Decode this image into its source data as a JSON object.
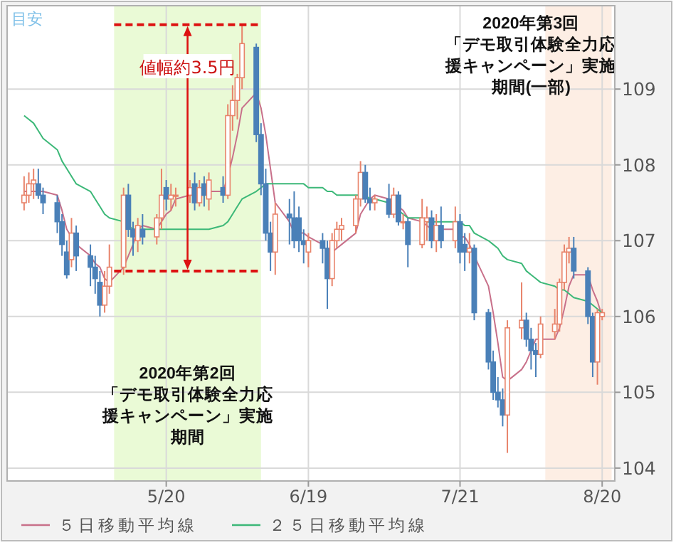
{
  "chart_data": {
    "type": "candlestick",
    "x": [
      "2020-04-20",
      "2020-04-21",
      "2020-04-22",
      "2020-04-23",
      "2020-04-24",
      "2020-04-27",
      "2020-04-28",
      "2020-04-29",
      "2020-04-30",
      "2020-05-01",
      "2020-05-04",
      "2020-05-05",
      "2020-05-06",
      "2020-05-07",
      "2020-05-08",
      "2020-05-11",
      "2020-05-12",
      "2020-05-13",
      "2020-05-14",
      "2020-05-15",
      "2020-05-18",
      "2020-05-19",
      "2020-05-20",
      "2020-05-21",
      "2020-05-22",
      "2020-05-25",
      "2020-05-26",
      "2020-05-27",
      "2020-05-28",
      "2020-05-29",
      "2020-06-01",
      "2020-06-02",
      "2020-06-03",
      "2020-06-04",
      "2020-06-05",
      "2020-06-08",
      "2020-06-09",
      "2020-06-10",
      "2020-06-11",
      "2020-06-12",
      "2020-06-15",
      "2020-06-16",
      "2020-06-17",
      "2020-06-18",
      "2020-06-19",
      "2020-06-22",
      "2020-06-23",
      "2020-06-24",
      "2020-06-25",
      "2020-06-26",
      "2020-06-29",
      "2020-06-30",
      "2020-07-01",
      "2020-07-02",
      "2020-07-03",
      "2020-07-06",
      "2020-07-07",
      "2020-07-08",
      "2020-07-09",
      "2020-07-10",
      "2020-07-13",
      "2020-07-14",
      "2020-07-15",
      "2020-07-16",
      "2020-07-17",
      "2020-07-20",
      "2020-07-21",
      "2020-07-22",
      "2020-07-23",
      "2020-07-24",
      "2020-07-27",
      "2020-07-28",
      "2020-07-29",
      "2020-07-30",
      "2020-07-31",
      "2020-08-03",
      "2020-08-04",
      "2020-08-05",
      "2020-08-06",
      "2020-08-07",
      "2020-08-10",
      "2020-08-11",
      "2020-08-12",
      "2020-08-13",
      "2020-08-14",
      "2020-08-17",
      "2020-08-18",
      "2020-08-19",
      "2020-08-20"
    ],
    "ohlc": [
      [
        107.5,
        107.85,
        107.4,
        107.6
      ],
      [
        107.6,
        107.9,
        107.5,
        107.75
      ],
      [
        107.75,
        107.95,
        107.55,
        107.8
      ],
      [
        107.75,
        107.95,
        107.55,
        107.6
      ],
      [
        107.6,
        107.7,
        107.35,
        107.5
      ],
      [
        107.5,
        107.6,
        107.1,
        107.25
      ],
      [
        107.25,
        107.35,
        106.8,
        106.95
      ],
      [
        106.85,
        107.0,
        106.5,
        106.55
      ],
      [
        106.75,
        107.3,
        106.65,
        107.1
      ],
      [
        107.1,
        107.2,
        106.6,
        106.8
      ],
      [
        106.8,
        106.95,
        106.4,
        106.65
      ],
      [
        106.65,
        106.8,
        106.3,
        106.5
      ],
      [
        106.45,
        106.6,
        106.0,
        106.15
      ],
      [
        106.15,
        106.6,
        106.05,
        106.4
      ],
      [
        106.4,
        106.95,
        106.3,
        106.65
      ],
      [
        106.65,
        107.7,
        106.55,
        107.6
      ],
      [
        107.6,
        107.75,
        107.05,
        107.15
      ],
      [
        107.15,
        107.25,
        106.8,
        107.05
      ],
      [
        107.0,
        107.3,
        106.85,
        107.2
      ],
      [
        107.15,
        107.35,
        106.95,
        107.05
      ],
      [
        107.05,
        107.35,
        106.95,
        107.3
      ],
      [
        107.3,
        107.95,
        107.15,
        107.6
      ],
      [
        107.7,
        107.8,
        107.4,
        107.55
      ],
      [
        107.55,
        107.75,
        107.4,
        107.6
      ],
      [
        107.6,
        107.7,
        107.45,
        107.6
      ],
      [
        107.6,
        107.8,
        107.5,
        107.7
      ],
      [
        107.75,
        107.9,
        107.4,
        107.5
      ],
      [
        107.5,
        107.8,
        107.45,
        107.7
      ],
      [
        107.75,
        107.85,
        107.45,
        107.6
      ],
      [
        107.55,
        107.9,
        107.4,
        107.8
      ],
      [
        107.7,
        107.85,
        107.5,
        107.6
      ],
      [
        107.6,
        108.8,
        107.55,
        108.65
      ],
      [
        108.65,
        109.05,
        108.45,
        108.85
      ],
      [
        108.85,
        109.2,
        108.6,
        109.15
      ],
      [
        109.15,
        109.85,
        109.0,
        109.6
      ],
      [
        109.55,
        109.6,
        108.3,
        108.4
      ],
      [
        108.4,
        108.55,
        107.6,
        107.75
      ],
      [
        107.75,
        107.95,
        107.0,
        107.1
      ],
      [
        107.1,
        107.25,
        106.6,
        106.85
      ],
      [
        106.85,
        107.5,
        106.55,
        107.35
      ],
      [
        107.35,
        107.55,
        106.95,
        107.3
      ],
      [
        107.3,
        107.65,
        106.9,
        107.0
      ],
      [
        107.3,
        107.45,
        106.85,
        107.0
      ],
      [
        107.0,
        107.15,
        106.7,
        106.95
      ],
      [
        106.85,
        107.1,
        106.65,
        107.0
      ],
      [
        107.0,
        107.1,
        106.7,
        106.9
      ],
      [
        106.9,
        107.0,
        106.1,
        106.5
      ],
      [
        106.5,
        107.1,
        106.4,
        107.0
      ],
      [
        107.0,
        107.25,
        106.9,
        107.15
      ],
      [
        107.15,
        107.3,
        107.0,
        107.2
      ],
      [
        107.2,
        107.6,
        107.1,
        107.55
      ],
      [
        107.55,
        108.05,
        107.45,
        107.9
      ],
      [
        107.9,
        108.0,
        107.5,
        107.55
      ],
      [
        107.55,
        107.7,
        107.4,
        107.5
      ],
      [
        107.5,
        107.6,
        107.4,
        107.55
      ],
      [
        107.55,
        107.75,
        107.3,
        107.35
      ],
      [
        107.35,
        107.7,
        107.3,
        107.6
      ],
      [
        107.6,
        107.65,
        107.2,
        107.25
      ],
      [
        107.25,
        107.35,
        107.15,
        107.25
      ],
      [
        107.25,
        107.3,
        106.65,
        106.95
      ],
      [
        106.95,
        107.55,
        106.9,
        107.3
      ],
      [
        107.25,
        107.45,
        107.0,
        107.3
      ],
      [
        107.3,
        107.4,
        106.9,
        107.0
      ],
      [
        107.0,
        107.35,
        106.85,
        107.2
      ],
      [
        107.2,
        107.45,
        106.9,
        107.0
      ],
      [
        107.0,
        107.45,
        106.9,
        107.25
      ],
      [
        107.25,
        107.35,
        106.7,
        106.85
      ],
      [
        106.95,
        107.1,
        106.6,
        106.85
      ],
      [
        106.85,
        107.1,
        106.7,
        106.9
      ],
      [
        106.9,
        106.95,
        105.95,
        106.05
      ],
      [
        106.05,
        106.1,
        105.3,
        105.4
      ],
      [
        105.4,
        105.55,
        104.9,
        105.0
      ],
      [
        105.0,
        105.2,
        104.8,
        104.9
      ],
      [
        104.9,
        105.05,
        104.55,
        104.7
      ],
      [
        104.7,
        105.95,
        104.2,
        105.85
      ],
      [
        105.85,
        106.45,
        105.7,
        105.95
      ],
      [
        105.95,
        106.05,
        105.6,
        105.7
      ],
      [
        105.7,
        105.85,
        105.3,
        105.55
      ],
      [
        105.55,
        105.65,
        105.2,
        105.5
      ],
      [
        105.5,
        106.0,
        105.45,
        105.9
      ],
      [
        105.8,
        106.1,
        105.7,
        105.9
      ],
      [
        105.9,
        106.5,
        105.8,
        106.45
      ],
      [
        106.45,
        106.95,
        106.35,
        106.85
      ],
      [
        106.85,
        107.05,
        106.7,
        106.9
      ],
      [
        106.9,
        107.05,
        106.5,
        106.6
      ],
      [
        106.6,
        106.65,
        105.9,
        106.0
      ],
      [
        106.0,
        106.05,
        105.2,
        105.4
      ],
      [
        105.4,
        106.1,
        105.1,
        106.05
      ],
      [
        106.0,
        106.1,
        105.95,
        106.05
      ]
    ],
    "series": [
      {
        "type": "line",
        "name": "５日移動平均線",
        "color": "#c8708a",
        "values": [
          107.65,
          107.65,
          107.65,
          107.65,
          107.65,
          107.6,
          107.4,
          107.15,
          107.05,
          106.95,
          106.8,
          106.7,
          106.65,
          106.5,
          106.45,
          106.65,
          106.8,
          106.95,
          107.15,
          107.2,
          107.15,
          107.25,
          107.35,
          107.4,
          107.55,
          107.6,
          107.6,
          107.6,
          107.6,
          107.65,
          107.65,
          107.85,
          108.1,
          108.4,
          108.75,
          108.95,
          108.75,
          108.4,
          107.95,
          107.5,
          107.25,
          107.1,
          107.1,
          107.1,
          107.05,
          106.95,
          106.85,
          106.85,
          106.9,
          106.95,
          107.1,
          107.35,
          107.45,
          107.55,
          107.6,
          107.55,
          107.5,
          107.45,
          107.4,
          107.3,
          107.25,
          107.2,
          107.15,
          107.15,
          107.15,
          107.15,
          107.05,
          107.05,
          106.95,
          106.8,
          106.4,
          106.05,
          105.65,
          105.2,
          105.15,
          105.3,
          105.4,
          105.55,
          105.7,
          105.7,
          105.7,
          105.85,
          106.1,
          106.4,
          106.55,
          106.55,
          106.35,
          106.2,
          106.0
        ]
      },
      {
        "type": "line",
        "name": "２５日移動平均線",
        "color": "#3cb878",
        "values": [
          108.65,
          108.6,
          108.55,
          108.45,
          108.35,
          108.2,
          108.05,
          107.95,
          107.85,
          107.75,
          107.65,
          107.55,
          107.45,
          107.35,
          107.3,
          107.25,
          107.2,
          107.15,
          107.15,
          107.15,
          107.15,
          107.15,
          107.15,
          107.15,
          107.15,
          107.15,
          107.15,
          107.15,
          107.15,
          107.15,
          107.2,
          107.25,
          107.35,
          107.45,
          107.55,
          107.65,
          107.7,
          107.75,
          107.75,
          107.75,
          107.75,
          107.75,
          107.75,
          107.75,
          107.7,
          107.7,
          107.65,
          107.65,
          107.6,
          107.6,
          107.6,
          107.6,
          107.6,
          107.55,
          107.55,
          107.5,
          107.45,
          107.4,
          107.35,
          107.3,
          107.3,
          107.25,
          107.25,
          107.25,
          107.25,
          107.25,
          107.25,
          107.2,
          107.2,
          107.1,
          107.0,
          106.95,
          106.9,
          106.8,
          106.75,
          106.7,
          106.6,
          106.55,
          106.5,
          106.45,
          106.4,
          106.35,
          106.35,
          106.3,
          106.25,
          106.2,
          106.15,
          106.1,
          106.05
        ]
      }
    ],
    "xlim": [
      "2020-04-16T10:00",
      "2020-08-22T16:00"
    ],
    "xticks": [
      {
        "value": "2020-05-20",
        "label": "5/20"
      },
      {
        "value": "2020-06-19",
        "label": "6/19"
      },
      {
        "value": "2020-07-21",
        "label": "7/21"
      },
      {
        "value": "2020-08-20",
        "label": "8/20"
      }
    ],
    "ylim": [
      103.83,
      110.1
    ],
    "yticks": [
      104,
      105,
      106,
      107,
      108,
      109
    ],
    "grid": true,
    "legend": "bottom",
    "bands": [
      {
        "axis": "x",
        "from": "2020-05-09",
        "to": "2020-06-09",
        "label": "2020年第2回「デモ取引体験全力応援キャンペーン」実施期間",
        "color": "#eafad6"
      },
      {
        "axis": "x",
        "from": "2020-08-08",
        "to": "2020-08-22",
        "label": "2020年第3回「デモ取引体験全力応援キャンペーン」実施期間(一部)",
        "color": "#fdeee4"
      }
    ],
    "ref_lines": [
      {
        "axis": "y",
        "value": 109.85,
        "color": "#dd1111",
        "line_style": "dashed"
      },
      {
        "axis": "y",
        "value": 106.6,
        "color": "#dd1111",
        "line_style": "dashed"
      }
    ],
    "annotations": [
      "目安",
      "値幅約3.5円"
    ]
  }
}
